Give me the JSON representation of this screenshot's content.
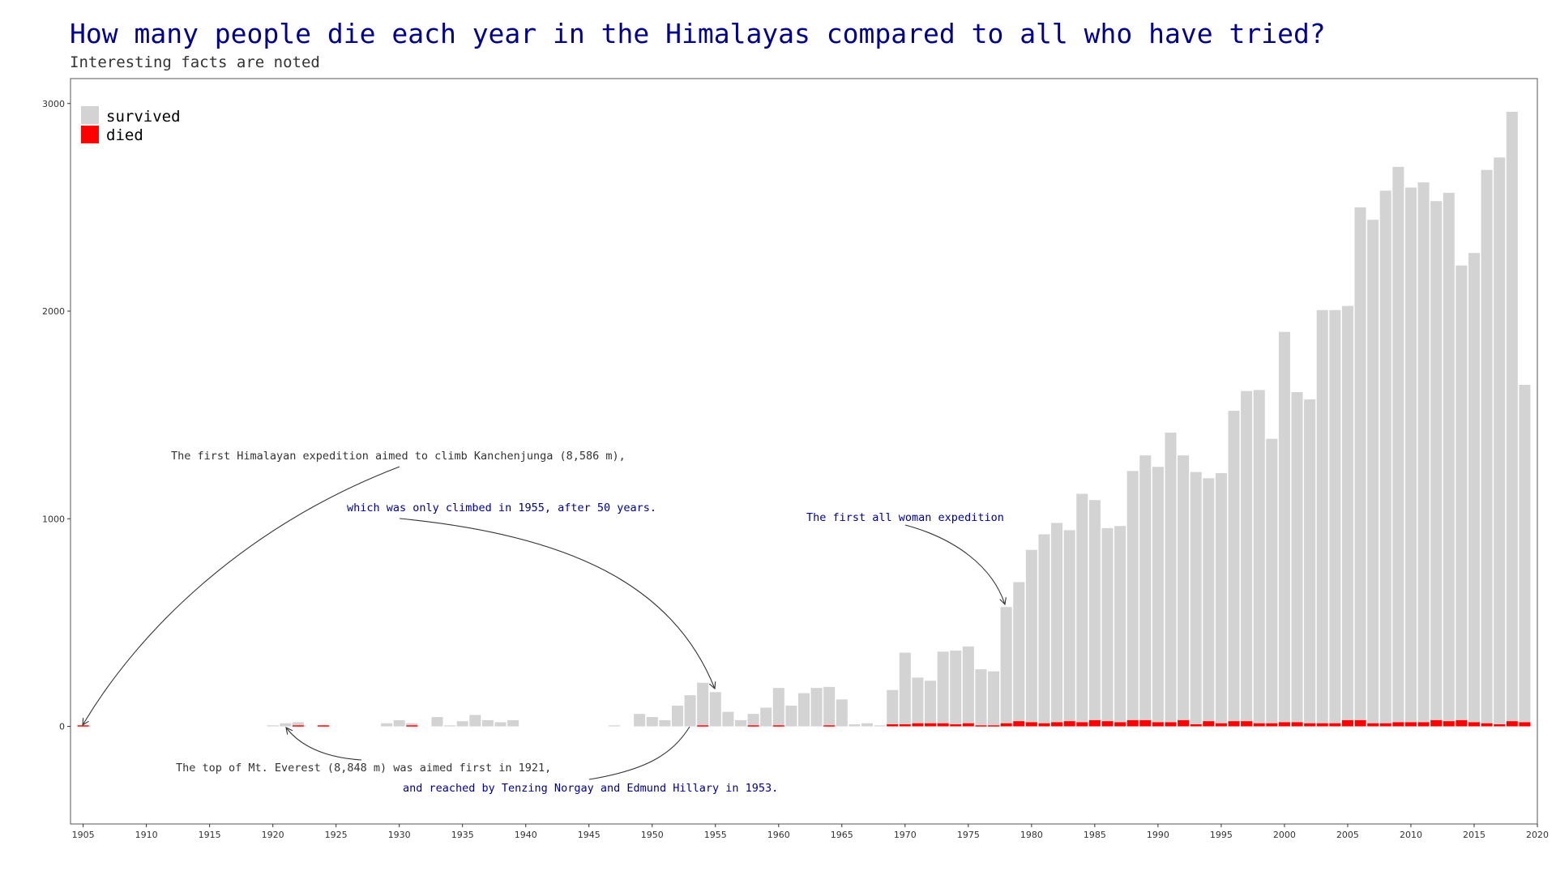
{
  "title": "How many people die each year in the Himalayas compared to all who have tried?",
  "subtitle": "Interesting facts are noted",
  "colors": {
    "survived": "#d3d3d3",
    "died": "#ff0000",
    "title": "#00008B",
    "annotation_blue": "#00008B",
    "annotation_dark": "#333333"
  },
  "chart_data": {
    "type": "bar",
    "stacked": true,
    "xlim": [
      1904,
      2020
    ],
    "ylim": [
      -470,
      3120
    ],
    "x_ticks": [
      1905,
      1910,
      1915,
      1920,
      1925,
      1930,
      1935,
      1940,
      1945,
      1950,
      1955,
      1960,
      1965,
      1970,
      1975,
      1980,
      1985,
      1990,
      1995,
      2000,
      2005,
      2010,
      2015,
      2020
    ],
    "y_ticks": [
      0,
      1000,
      2000,
      3000
    ],
    "grid": false,
    "legend": {
      "placement": "top-left",
      "entries": [
        "survived",
        "died"
      ]
    },
    "x": [
      1905,
      1920,
      1921,
      1922,
      1924,
      1929,
      1930,
      1931,
      1933,
      1934,
      1935,
      1936,
      1937,
      1938,
      1939,
      1947,
      1949,
      1950,
      1951,
      1952,
      1953,
      1954,
      1955,
      1956,
      1957,
      1958,
      1959,
      1960,
      1961,
      1962,
      1963,
      1964,
      1965,
      1966,
      1967,
      1968,
      1969,
      1970,
      1971,
      1972,
      1973,
      1974,
      1975,
      1976,
      1977,
      1978,
      1979,
      1980,
      1981,
      1982,
      1983,
      1984,
      1985,
      1986,
      1987,
      1988,
      1989,
      1990,
      1991,
      1992,
      1993,
      1994,
      1995,
      1996,
      1997,
      1998,
      1999,
      2000,
      2001,
      2002,
      2003,
      2004,
      2005,
      2006,
      2007,
      2008,
      2009,
      2010,
      2011,
      2012,
      2013,
      2014,
      2015,
      2016,
      2017,
      2018,
      2019
    ],
    "series": [
      {
        "name": "died",
        "values": [
          5,
          0,
          0,
          5,
          5,
          0,
          0,
          5,
          0,
          0,
          0,
          0,
          0,
          0,
          0,
          0,
          0,
          0,
          0,
          0,
          0,
          5,
          0,
          0,
          0,
          5,
          0,
          5,
          0,
          0,
          0,
          5,
          0,
          0,
          0,
          0,
          10,
          10,
          15,
          15,
          15,
          10,
          15,
          5,
          5,
          15,
          25,
          20,
          15,
          20,
          25,
          20,
          30,
          25,
          20,
          30,
          30,
          20,
          20,
          30,
          10,
          25,
          15,
          25,
          25,
          15,
          15,
          20,
          20,
          15,
          15,
          15,
          30,
          30,
          15,
          15,
          20,
          20,
          20,
          30,
          25,
          30,
          20,
          15,
          10,
          25,
          20
        ]
      },
      {
        "name": "survived",
        "values": [
          0,
          5,
          15,
          15,
          0,
          15,
          30,
          10,
          45,
          5,
          25,
          55,
          30,
          20,
          30,
          5,
          60,
          45,
          30,
          100,
          150,
          205,
          165,
          70,
          30,
          55,
          90,
          180,
          100,
          160,
          185,
          185,
          130,
          10,
          15,
          5,
          165,
          345,
          220,
          205,
          345,
          355,
          370,
          270,
          260,
          560,
          670,
          830,
          910,
          960,
          920,
          1100,
          1060,
          930,
          945,
          1200,
          1275,
          1230,
          1395,
          1275,
          1215,
          1170,
          1205,
          1495,
          1590,
          1605,
          1370,
          1880,
          1590,
          1560,
          1990,
          1990,
          1995,
          2470,
          2425,
          2565,
          2675,
          2575,
          2600,
          2500,
          2545,
          2190,
          2260,
          2665,
          2730,
          2935,
          1625
        ]
      }
    ],
    "annotations": [
      {
        "text": "The first Himalayan expedition aimed to climb Kanchenjunga (8,586 m),",
        "style": "dark"
      },
      {
        "text": "which was only climbed in 1955, after 50 years.",
        "style": "blue"
      },
      {
        "text": "The first all woman expedition",
        "style": "blue"
      },
      {
        "text": "The top of Mt. Everest (8,848 m) was aimed first in 1921,",
        "style": "dark"
      },
      {
        "text": "and reached by Tenzing Norgay and Edmund Hillary in 1953.",
        "style": "blue"
      }
    ]
  }
}
